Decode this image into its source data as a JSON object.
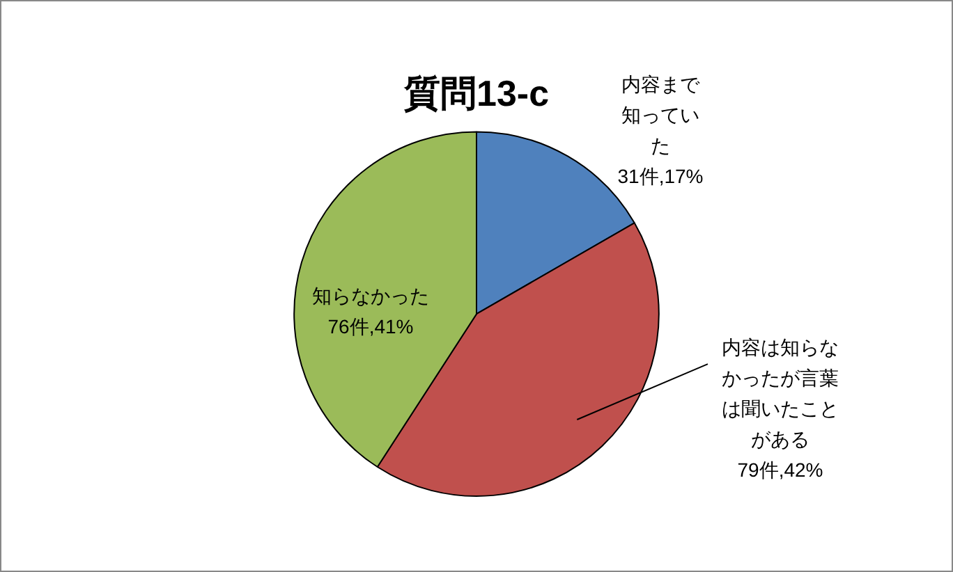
{
  "chart_data": {
    "type": "pie",
    "title": "質問13-c",
    "categories": [
      "内容まで知っていた",
      "内容は知らなかったが言葉は聞いたことがある",
      "知らなかった"
    ],
    "values": [
      31,
      79,
      76
    ],
    "colors": [
      "#4f81bd",
      "#c0504d",
      "#9bbb59"
    ],
    "value_labels": [
      "31件,17%",
      "79件,42%",
      "76件,41%"
    ],
    "legend": false
  }
}
